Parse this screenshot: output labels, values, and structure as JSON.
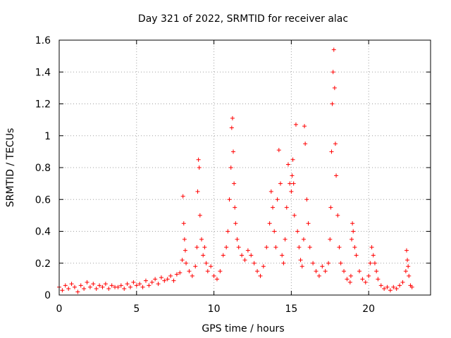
{
  "chart_data": {
    "type": "scatter",
    "title": "Day 321 of 2022, SRMTID for receiver alac",
    "xlabel": "GPS time / hours",
    "ylabel": "SRMTID / TECUs",
    "xlim": [
      0,
      24
    ],
    "ylim": [
      0,
      1.6
    ],
    "xticks": [
      0,
      5,
      10,
      15,
      20
    ],
    "xtick_labels": [
      "0",
      "5",
      "10",
      "15",
      "20"
    ],
    "yticks": [
      0,
      0.2,
      0.4,
      0.6,
      0.8,
      1.0,
      1.2,
      1.4,
      1.6
    ],
    "ytick_labels": [
      "0",
      "0.2",
      "0.4",
      "0.6",
      "0.8",
      "1",
      "1.2",
      "1.4",
      "1.6"
    ],
    "grid": true,
    "marker": "plus",
    "color": "#ff0000",
    "series": [
      {
        "name": "SRMTID",
        "x": [
          0.0,
          0.2,
          0.4,
          0.6,
          0.8,
          1.0,
          1.2,
          1.4,
          1.6,
          1.8,
          2.0,
          2.2,
          2.4,
          2.6,
          2.8,
          3.0,
          3.2,
          3.4,
          3.6,
          3.8,
          4.0,
          4.2,
          4.4,
          4.6,
          4.8,
          5.0,
          5.2,
          5.4,
          5.6,
          5.8,
          6.0,
          6.2,
          6.4,
          6.6,
          6.8,
          7.0,
          7.2,
          7.4,
          7.6,
          7.8,
          7.95,
          8.0,
          8.05,
          8.1,
          8.15,
          8.2,
          8.4,
          8.6,
          8.8,
          8.9,
          8.95,
          9.0,
          9.05,
          9.1,
          9.2,
          9.3,
          9.4,
          9.5,
          9.6,
          9.8,
          10.0,
          10.2,
          10.4,
          10.6,
          10.8,
          10.9,
          11.0,
          11.1,
          11.15,
          11.2,
          11.25,
          11.3,
          11.35,
          11.4,
          11.5,
          11.6,
          11.8,
          12.0,
          12.2,
          12.4,
          12.6,
          12.8,
          13.0,
          13.2,
          13.4,
          13.6,
          13.7,
          13.8,
          13.9,
          14.0,
          14.1,
          14.2,
          14.3,
          14.4,
          14.5,
          14.6,
          14.7,
          14.8,
          14.9,
          15.0,
          15.05,
          15.1,
          15.15,
          15.2,
          15.3,
          15.4,
          15.5,
          15.6,
          15.7,
          15.8,
          15.85,
          15.9,
          16.0,
          16.1,
          16.2,
          16.4,
          16.6,
          16.8,
          17.0,
          17.2,
          17.4,
          17.5,
          17.55,
          17.6,
          17.65,
          17.7,
          17.75,
          17.8,
          17.85,
          17.9,
          18.0,
          18.1,
          18.2,
          18.4,
          18.6,
          18.8,
          18.85,
          18.9,
          18.95,
          19.0,
          19.1,
          19.2,
          19.4,
          19.6,
          19.8,
          20.0,
          20.1,
          20.2,
          20.3,
          20.4,
          20.5,
          20.6,
          20.8,
          21.0,
          21.2,
          21.4,
          21.6,
          21.8,
          22.0,
          22.2,
          22.4,
          22.45,
          22.5,
          22.55,
          22.6,
          22.7,
          22.8
        ],
        "y": [
          0.05,
          0.03,
          0.06,
          0.04,
          0.07,
          0.05,
          0.02,
          0.06,
          0.04,
          0.08,
          0.05,
          0.07,
          0.04,
          0.06,
          0.05,
          0.07,
          0.04,
          0.06,
          0.05,
          0.05,
          0.06,
          0.04,
          0.07,
          0.05,
          0.08,
          0.06,
          0.07,
          0.05,
          0.09,
          0.06,
          0.08,
          0.1,
          0.07,
          0.11,
          0.09,
          0.1,
          0.12,
          0.09,
          0.13,
          0.14,
          0.22,
          0.62,
          0.45,
          0.35,
          0.28,
          0.2,
          0.15,
          0.12,
          0.18,
          0.3,
          0.65,
          0.85,
          0.8,
          0.5,
          0.35,
          0.25,
          0.3,
          0.2,
          0.15,
          0.18,
          0.12,
          0.1,
          0.15,
          0.25,
          0.3,
          0.4,
          0.6,
          0.8,
          1.05,
          1.11,
          0.9,
          0.7,
          0.55,
          0.45,
          0.35,
          0.3,
          0.25,
          0.22,
          0.28,
          0.25,
          0.2,
          0.15,
          0.12,
          0.18,
          0.3,
          0.45,
          0.65,
          0.55,
          0.4,
          0.3,
          0.6,
          0.91,
          0.7,
          0.25,
          0.2,
          0.35,
          0.55,
          0.82,
          0.7,
          0.65,
          0.75,
          0.85,
          0.7,
          0.5,
          1.07,
          0.4,
          0.3,
          0.22,
          0.18,
          0.35,
          1.06,
          0.95,
          0.6,
          0.45,
          0.3,
          0.2,
          0.15,
          0.12,
          0.18,
          0.15,
          0.2,
          0.35,
          0.55,
          0.9,
          1.2,
          1.4,
          1.54,
          1.3,
          0.95,
          0.75,
          0.5,
          0.3,
          0.2,
          0.15,
          0.1,
          0.08,
          0.12,
          0.35,
          0.45,
          0.4,
          0.3,
          0.25,
          0.15,
          0.1,
          0.08,
          0.12,
          0.2,
          0.3,
          0.25,
          0.2,
          0.15,
          0.1,
          0.06,
          0.04,
          0.05,
          0.03,
          0.05,
          0.04,
          0.06,
          0.08,
          0.15,
          0.28,
          0.22,
          0.18,
          0.12,
          0.06,
          0.05
        ]
      }
    ]
  }
}
